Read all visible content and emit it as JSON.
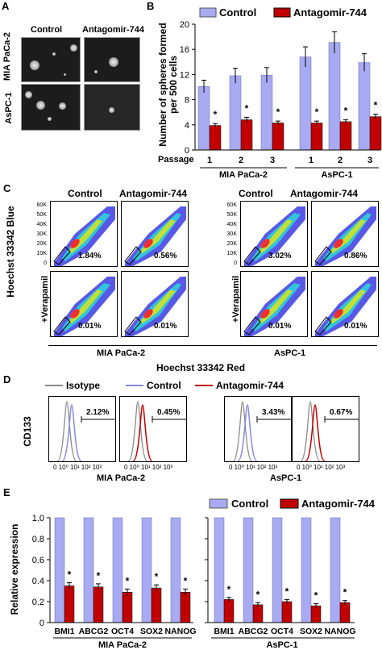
{
  "panelA": {
    "letter": "A",
    "col_labels": [
      "Control",
      "Antagomir-744"
    ],
    "row_labels": [
      "MIA PaCa-2",
      "AsPC-1"
    ]
  },
  "panelB": {
    "letter": "B",
    "passage_label": "Passage",
    "group_labels": [
      "MIA PaCa-2",
      "AsPC-1"
    ]
  },
  "panelC": {
    "letter": "C",
    "ylabel": "Hoechst 33342 Blue",
    "row_label": "+Verapamil",
    "xlabel": "Hoechst 33342 Red",
    "ytick_labels": [
      "60K",
      "50K",
      "40K",
      "30K",
      "20K",
      "10K",
      "0"
    ],
    "groups": [
      {
        "name": "MIA PaCa-2",
        "col_labels": [
          "Control",
          "Antagomir-744"
        ],
        "percents": [
          "1.84%",
          "0.56%",
          "0.01%",
          "0.01%"
        ]
      },
      {
        "name": "AsPC-1",
        "col_labels": [
          "Control",
          "Antagomir-744"
        ],
        "percents": [
          "3.02%",
          "0.86%",
          "0.01%",
          "0.01%"
        ]
      }
    ]
  },
  "panelD": {
    "letter": "D",
    "legend": [
      "Isotype",
      "Control",
      "Antagomir-744"
    ],
    "ylabel": "CD133",
    "axis_ticks": [
      "10⁰",
      "10¹",
      "10²",
      "10³"
    ],
    "axis_tick_first": "0",
    "groups": [
      {
        "name": "MIA PaCa-2",
        "percents": [
          "2.12%",
          "0.45%"
        ]
      },
      {
        "name": "AsPC-1",
        "percents": [
          "3.43%",
          "0.67%"
        ]
      }
    ]
  },
  "panelE": {
    "letter": "E"
  },
  "colors": {
    "control": "#a8aaf2",
    "antagomir": "#c00000",
    "isotype": "#8a8a8a",
    "control_line": "#8888e8"
  },
  "chart_data": [
    {
      "type": "bar",
      "ylabel": "Number of spheres formed per 500 cells",
      "ylim": [
        0,
        20
      ],
      "yticks": [
        0,
        4,
        8,
        12,
        16,
        20
      ],
      "legend_position": "top",
      "categories": [
        "1",
        "2",
        "3",
        "1",
        "2",
        "3"
      ],
      "groups": [
        "MIA PaCa-2",
        "AsPC-1"
      ],
      "series": [
        {
          "name": "Control",
          "values": [
            10.1,
            11.8,
            11.9,
            14.8,
            17.1,
            13.9
          ],
          "errors": [
            1.0,
            1.2,
            1.2,
            1.6,
            1.7,
            1.4
          ]
        },
        {
          "name": "Antagomir-744",
          "values": [
            3.9,
            4.8,
            4.3,
            4.3,
            4.5,
            5.3
          ],
          "errors": [
            0.3,
            0.4,
            0.3,
            0.3,
            0.3,
            0.4
          ]
        }
      ],
      "annotations": [
        "*",
        "*",
        "*",
        "*",
        "*",
        "*"
      ]
    },
    {
      "type": "bar",
      "ylabel": "Relative expression",
      "ylim": [
        0,
        1.0
      ],
      "yticks": [
        "0",
        "0.2",
        "0.4",
        "0.6",
        "0.8",
        "1.0"
      ],
      "legend_position": "top",
      "categories": [
        "BMI1",
        "ABCG2",
        "OCT4",
        "SOX2",
        "NANOG",
        "BMI1",
        "ABCG2",
        "OCT4",
        "SOX2",
        "NANOG"
      ],
      "groups": [
        "MIA PaCa-2",
        "AsPC-1"
      ],
      "series": [
        {
          "name": "Control",
          "values": [
            1,
            1,
            1,
            1,
            1,
            1,
            1,
            1,
            1,
            1
          ]
        },
        {
          "name": "Antagomir-744",
          "values": [
            0.35,
            0.34,
            0.29,
            0.33,
            0.29,
            0.22,
            0.17,
            0.2,
            0.16,
            0.19
          ],
          "errors": [
            0.03,
            0.03,
            0.03,
            0.03,
            0.03,
            0.02,
            0.02,
            0.02,
            0.02,
            0.02
          ]
        }
      ],
      "annotations": [
        "*",
        "*",
        "*",
        "*",
        "*",
        "*",
        "*",
        "*",
        "*",
        "*"
      ]
    }
  ]
}
